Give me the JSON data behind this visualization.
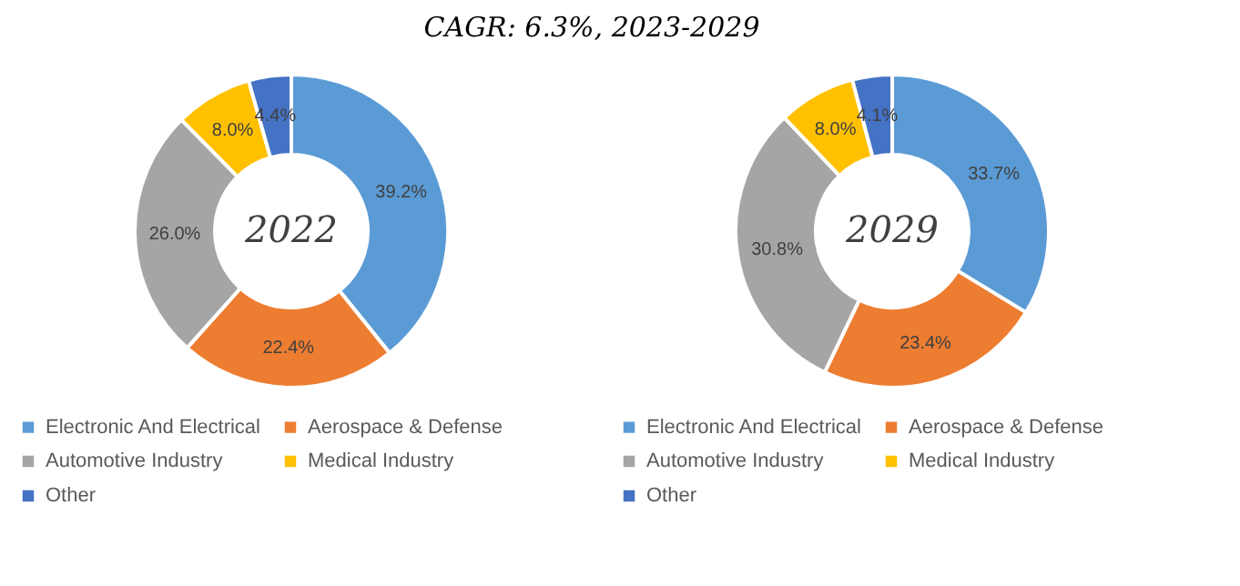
{
  "chart_data": [
    {
      "type": "donut",
      "title": "2022",
      "annotations": [
        "CAGR:      6.3%, 2023-2029"
      ],
      "categories": [
        "Electronic And Electrical",
        "Aerospace & Defense",
        "Automotive Industry",
        "Medical Industry",
        "Other"
      ],
      "values": [
        39.2,
        22.4,
        26.0,
        8.0,
        4.4
      ],
      "value_labels": [
        "39.2%",
        "22.4%",
        "26.0%",
        "8.0%",
        "4.4%"
      ],
      "colors": [
        "#5b9bd5",
        "#ed7d31",
        "#a5a5a5",
        "#ffc000",
        "#4472c4"
      ],
      "legend": "bottom"
    },
    {
      "type": "donut",
      "title": "2029",
      "categories": [
        "Electronic And Electrical",
        "Aerospace & Defense",
        "Automotive Industry",
        "Medical Industry",
        "Other"
      ],
      "values": [
        33.7,
        23.4,
        30.8,
        8.0,
        4.1
      ],
      "value_labels": [
        "33.7%",
        "23.4%",
        "30.8%",
        "8.0%",
        "4.1%"
      ],
      "colors": [
        "#5b9bd5",
        "#ed7d31",
        "#a5a5a5",
        "#ffc000",
        "#4472c4"
      ],
      "legend": "bottom"
    }
  ]
}
